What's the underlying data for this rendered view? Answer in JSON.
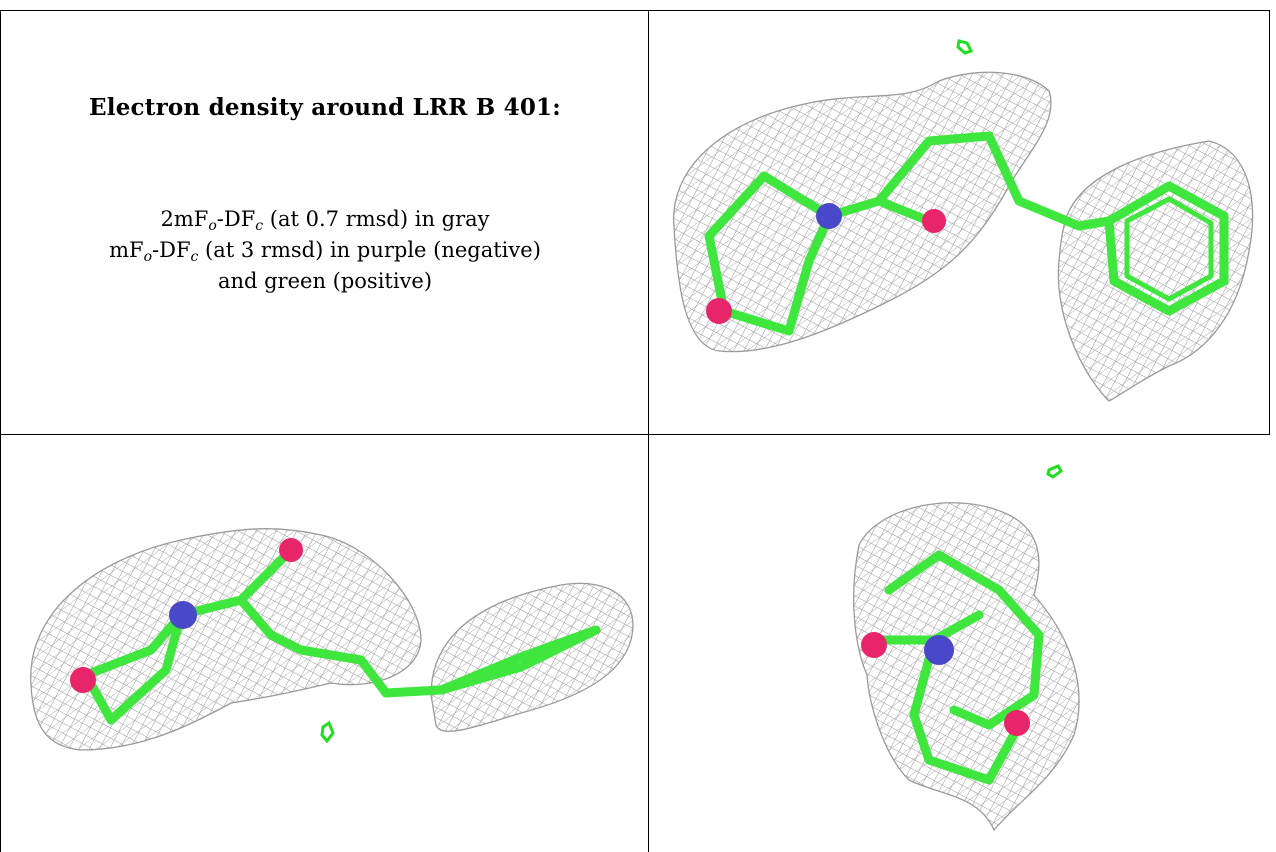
{
  "title": "Electron density around LRR B 401:",
  "legend": {
    "line1": {
      "prefix": "2mF",
      "sub1": "o",
      "middle": "-DF",
      "sub2": "c",
      "suffix": " (at 0.7 rmsd) in gray"
    },
    "line2": {
      "prefix": "mF",
      "sub1": "o",
      "middle": "-DF",
      "sub2": "c",
      "suffix": " (at 3 rmsd) in purple (negative)"
    },
    "line3": "and green (positive)"
  },
  "colors": {
    "mesh": "#9a9a9a",
    "carbon": "#3ee63e",
    "nitrogen": "#4848c8",
    "oxygen": "#e8256a",
    "difference_positive": "#1fe01f"
  },
  "panels": [
    {
      "name": "view-top-right",
      "content": "ligand-density-render"
    },
    {
      "name": "view-bottom-left",
      "content": "ligand-density-render"
    },
    {
      "name": "view-bottom-right",
      "content": "ligand-density-render"
    }
  ]
}
